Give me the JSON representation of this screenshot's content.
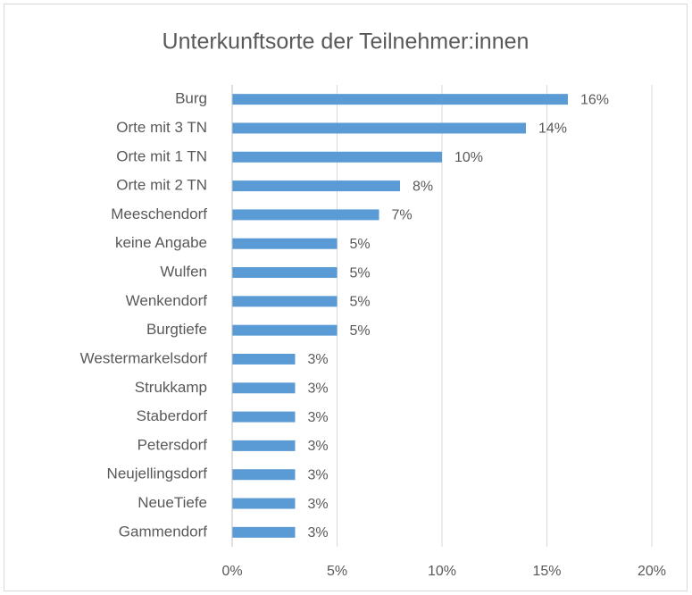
{
  "chart_data": {
    "type": "bar",
    "orientation": "horizontal",
    "title": "Unterkunftsorte der Teilnehmer:innen",
    "categories": [
      "Burg",
      "Orte mit 3 TN",
      "Orte mit 1 TN",
      "Orte mit 2 TN",
      "Meeschendorf",
      "keine Angabe",
      "Wulfen",
      "Wenkendorf",
      "Burgtiefe",
      "Westermarkelsdorf",
      "Strukkamp",
      "Staberdorf",
      "Petersdorf",
      "Neujellingsdorf",
      "NeueTiefe",
      "Gammendorf"
    ],
    "values": [
      16,
      14,
      10,
      8,
      7,
      5,
      5,
      5,
      5,
      3,
      3,
      3,
      3,
      3,
      3,
      3
    ],
    "value_labels": [
      "16%",
      "14%",
      "10%",
      "8%",
      "7%",
      "5%",
      "5%",
      "5%",
      "5%",
      "3%",
      "3%",
      "3%",
      "3%",
      "3%",
      "3%",
      "3%"
    ],
    "color": "#5b9bd5",
    "xlim": [
      0,
      20
    ],
    "xticks": [
      {
        "value": 0,
        "label": "0%"
      },
      {
        "value": 5,
        "label": "5%"
      },
      {
        "value": 10,
        "label": "10%"
      },
      {
        "value": 15,
        "label": "15%"
      },
      {
        "value": 20,
        "label": "20%"
      }
    ],
    "grid": true
  }
}
